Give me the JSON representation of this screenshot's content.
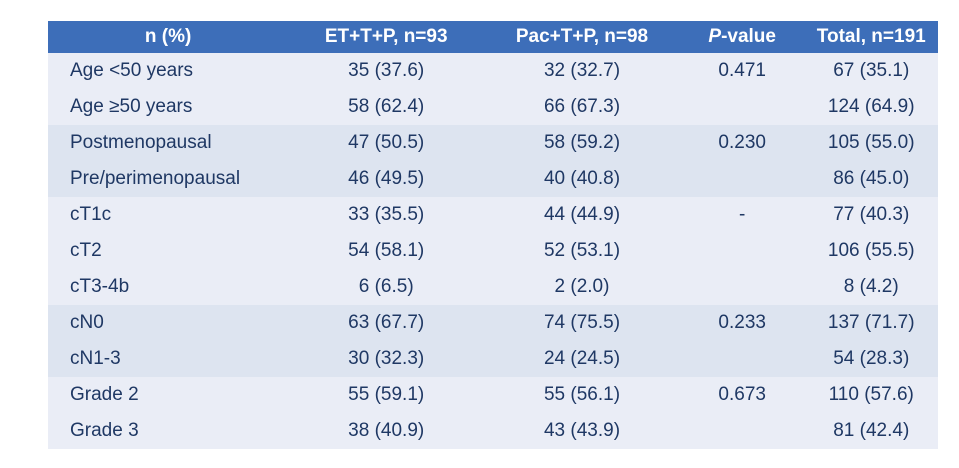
{
  "table": {
    "header": {
      "col_label": "n (%)",
      "col_et": "ET+T+P, n=93",
      "col_pac": "Pac+T+P, n=98",
      "col_p_italic": "P",
      "col_p_rest": "-value",
      "col_total": "Total, n=191"
    },
    "rows": [
      {
        "label": "Age <50 years",
        "et": "35 (37.6)",
        "pac": "32 (32.7)",
        "p": "0.471",
        "total": "67 (35.1)"
      },
      {
        "label": "Age ≥50 years",
        "et": "58 (62.4)",
        "pac": "66 (67.3)",
        "p": "",
        "total": "124 (64.9)"
      },
      {
        "label": "Postmenopausal",
        "et": "47 (50.5)",
        "pac": "58 (59.2)",
        "p": "0.230",
        "total": "105 (55.0)"
      },
      {
        "label": "Pre/perimenopausal",
        "et": "46 (49.5)",
        "pac": "40 (40.8)",
        "p": "",
        "total": "86 (45.0)"
      },
      {
        "label": "cT1c",
        "et": "33 (35.5)",
        "pac": "44 (44.9)",
        "p": "-",
        "total": "77 (40.3)"
      },
      {
        "label": "cT2",
        "et": "54 (58.1)",
        "pac": "52 (53.1)",
        "p": "",
        "total": "106 (55.5)"
      },
      {
        "label": "cT3-4b",
        "et": "6 (6.5)",
        "pac": "2 (2.0)",
        "p": "",
        "total": "8 (4.2)"
      },
      {
        "label": "cN0",
        "et": "63 (67.7)",
        "pac": "74 (75.5)",
        "p": "0.233",
        "total": "137 (71.7)"
      },
      {
        "label": "cN1-3",
        "et": "30 (32.3)",
        "pac": "24 (24.5)",
        "p": "",
        "total": "54 (28.3)"
      },
      {
        "label": "Grade 2",
        "et": "55 (59.1)",
        "pac": "55 (56.1)",
        "p": "0.673",
        "total": "110 (57.6)"
      },
      {
        "label": "Grade 3",
        "et": "38 (40.9)",
        "pac": "43 (43.9)",
        "p": "",
        "total": "81 (42.4)"
      }
    ]
  },
  "colors": {
    "header_bg": "#3d6eb9",
    "header_text": "#ffffff",
    "row_light": "#eaedf6",
    "row_band": "#dde4f0",
    "body_text": "#1f3864"
  }
}
